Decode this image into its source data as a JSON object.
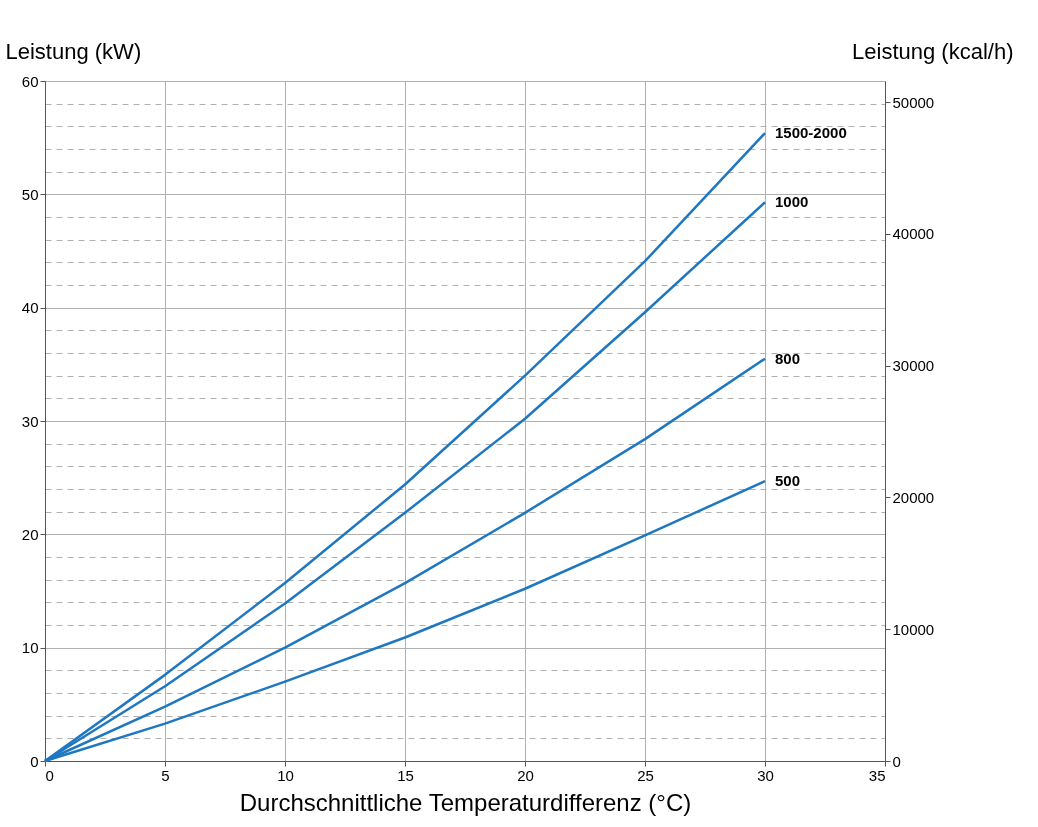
{
  "chart_data": {
    "type": "line",
    "xlabel": "Durchschnittliche Temperaturdifferenz (°C)",
    "ylabel": "Leistung (kW)",
    "y2label": "Leistung (kcal/h)",
    "x": [
      0,
      5,
      10,
      15,
      20,
      25,
      30
    ],
    "series": [
      {
        "name": "1500-2000",
        "color": "#1f77c0",
        "values": [
          0,
          7.6,
          15.7,
          24.4,
          34.0,
          44.1,
          55.4
        ]
      },
      {
        "name": "1000",
        "color": "#1f77c0",
        "values": [
          0,
          6.6,
          13.9,
          21.9,
          30.2,
          39.6,
          49.3
        ]
      },
      {
        "name": "800",
        "color": "#1f77c0",
        "values": [
          0,
          4.8,
          10.0,
          15.7,
          21.9,
          28.4,
          35.5
        ]
      },
      {
        "name": "500",
        "color": "#1f77c0",
        "values": [
          0,
          3.3,
          7.0,
          10.9,
          15.2,
          19.9,
          24.7
        ]
      }
    ],
    "xlim": [
      0,
      35
    ],
    "xticks": [
      0,
      5,
      10,
      15,
      20,
      25,
      30,
      35
    ],
    "ylim": [
      0,
      60
    ],
    "yticks": [
      0,
      {
        "value": 2,
        "label": null
      },
      {
        "value": 4,
        "label": null
      },
      {
        "value": 6,
        "label": null
      },
      {
        "value": 8,
        "label": null
      },
      10,
      {
        "value": 12,
        "label": null
      },
      {
        "value": 14,
        "label": null
      },
      {
        "value": 16,
        "label": null
      },
      {
        "value": 18,
        "label": null
      },
      20,
      {
        "value": 22,
        "label": null
      },
      {
        "value": 24,
        "label": null
      },
      {
        "value": 26,
        "label": null
      },
      {
        "value": 28,
        "label": null
      },
      30,
      {
        "value": 32,
        "label": null
      },
      {
        "value": 34,
        "label": null
      },
      {
        "value": 36,
        "label": null
      },
      {
        "value": 38,
        "label": null
      },
      40,
      {
        "value": 42,
        "label": null
      },
      {
        "value": 44,
        "label": null
      },
      {
        "value": 46,
        "label": null
      },
      {
        "value": 48,
        "label": null
      },
      50,
      {
        "value": 52,
        "label": null
      },
      {
        "value": 54,
        "label": null
      },
      {
        "value": 56,
        "label": null
      },
      {
        "value": 58,
        "label": null
      },
      60
    ],
    "y2lim": [
      0,
      51600
    ],
    "y2ticks": [
      0,
      10000,
      20000,
      30000,
      40000,
      50000
    ],
    "grid": true,
    "legend": false,
    "marker": "none",
    "line_style": "solid"
  }
}
